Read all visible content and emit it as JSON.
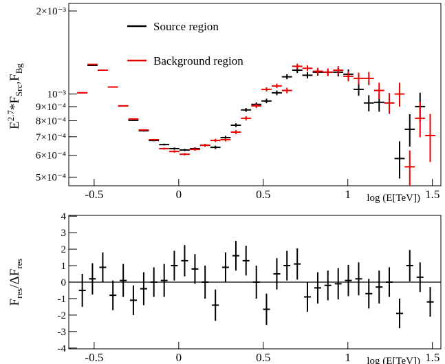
{
  "chart_data": [
    {
      "type": "errorbar",
      "log_y": true,
      "legend": "upper left",
      "xerr": 0.03,
      "ylabel": [
        "E",
        "2.7",
        "*F",
        "Src",
        ",F",
        "Bg"
      ],
      "ylabel_shift": [
        "base",
        "sup",
        "base",
        "sub",
        "base",
        "sub"
      ],
      "xlabel": "log (E[TeV])",
      "xlim": [
        -0.65,
        1.55
      ],
      "xticks": [
        -0.5,
        0,
        0.5,
        1,
        1.5
      ],
      "ylim": [
        0.000465,
        0.00213
      ],
      "yticks": [
        {
          "value": 0.0005,
          "label": "5×10⁻⁴"
        },
        {
          "value": 0.0006,
          "label": "6×10⁻⁴"
        },
        {
          "value": 0.0007,
          "label": "7×10⁻⁴"
        },
        {
          "value": 0.0008,
          "label": "8×10⁻⁴"
        },
        {
          "value": 0.0009,
          "label": "9×10⁻⁴"
        },
        {
          "value": 0.001,
          "label": "10⁻³"
        },
        {
          "value": 0.002,
          "label": "2×10⁻³"
        }
      ],
      "series": [
        {
          "name": "Source region",
          "color": "#000000",
          "x": [
            -0.57,
            -0.51,
            -0.449,
            -0.389,
            -0.328,
            -0.268,
            -0.207,
            -0.147,
            -0.086,
            -0.026,
            0.035,
            0.096,
            0.156,
            0.217,
            0.277,
            0.338,
            0.398,
            0.459,
            0.519,
            0.58,
            0.64,
            0.701,
            0.761,
            0.822,
            0.882,
            0.943,
            1.003,
            1.064,
            1.124,
            1.185,
            1.245,
            1.306,
            1.366,
            1.427
          ],
          "values": [
            0.00101,
            0.00127,
            0.00122,
            0.00106,
            0.000906,
            0.000803,
            0.000736,
            0.000679,
            0.000656,
            0.000634,
            0.000627,
            0.000634,
            0.000652,
            0.000641,
            0.000695,
            0.000771,
            0.000876,
            0.000917,
            0.000944,
            0.00101,
            0.001155,
            0.00122,
            0.00117,
            0.0012,
            0.0012,
            0.0012,
            0.00118,
            0.00104,
            0.000928,
            0.000933,
            0.000928,
            0.000584,
            0.000745,
            0.000901
          ],
          "errors": [
            6e-06,
            6e-06,
            6e-06,
            6e-06,
            5e-06,
            5e-06,
            5e-06,
            5e-06,
            5e-06,
            6e-06,
            6e-06,
            7e-06,
            8e-06,
            9e-06,
            1e-05,
            1.2e-05,
            1.4e-05,
            1.6e-05,
            1.8e-05,
            2e-05,
            2.4e-05,
            2.8e-05,
            3e-05,
            3.4e-05,
            3.8e-05,
            4.2e-05,
            4.8e-05,
            5.5e-05,
            6.2e-05,
            7e-05,
            8e-05,
            9e-05,
            0.0001,
            0.00011
          ]
        },
        {
          "name": "Background region",
          "color": "#ee0000",
          "x": [
            -0.57,
            -0.51,
            -0.449,
            -0.389,
            -0.328,
            -0.268,
            -0.207,
            -0.147,
            -0.086,
            -0.026,
            0.035,
            0.096,
            0.156,
            0.217,
            0.277,
            0.338,
            0.398,
            0.459,
            0.519,
            0.58,
            0.64,
            0.701,
            0.761,
            0.822,
            0.882,
            0.943,
            1.003,
            1.064,
            1.124,
            1.185,
            1.245,
            1.306,
            1.366,
            1.427,
            1.487
          ],
          "values": [
            0.00101,
            0.00128,
            0.00122,
            0.00106,
            0.000906,
            0.000812,
            0.000741,
            0.000683,
            0.000634,
            0.000619,
            0.000605,
            0.00063,
            0.000652,
            0.000679,
            0.000683,
            0.000728,
            0.000817,
            0.000906,
            0.00104,
            0.00107,
            0.00103,
            0.00126,
            0.00124,
            0.00121,
            0.0012,
            0.00122,
            0.00116,
            0.00114,
            0.00114,
            0.00103,
            0.000928,
            0.001,
            0.000545,
            0.000817,
            0.000707
          ],
          "errors": [
            6e-06,
            6e-06,
            6e-06,
            6e-06,
            5e-06,
            5e-06,
            5e-06,
            5e-06,
            5e-06,
            6e-06,
            6e-06,
            7e-06,
            8e-06,
            9e-06,
            1e-05,
            1.2e-05,
            1.4e-05,
            1.6e-05,
            1.8e-05,
            2e-05,
            2.4e-05,
            2.8e-05,
            3e-05,
            3.4e-05,
            3.8e-05,
            4.2e-05,
            4.8e-05,
            5.5e-05,
            6.2e-05,
            7e-05,
            8e-05,
            0.0001,
            8e-05,
            0.00012,
            0.00014
          ]
        }
      ]
    },
    {
      "type": "errorbar",
      "log_y": false,
      "ylabel": [
        "F",
        "res",
        "/ΔF",
        "res"
      ],
      "ylabel_shift": [
        "base",
        "sub",
        "base",
        "sub"
      ],
      "xlabel": "log (E[TeV])",
      "xlim": [
        -0.65,
        1.55
      ],
      "xticks": [
        -0.5,
        0,
        0.5,
        1,
        1.5
      ],
      "ylim": [
        -4.05,
        4.05
      ],
      "yticks": [
        -4,
        -3,
        -2,
        -1,
        0,
        1,
        2,
        3,
        4
      ],
      "hline": 0,
      "series": [
        {
          "color": "#000000",
          "x": [
            -0.57,
            -0.51,
            -0.449,
            -0.389,
            -0.328,
            -0.268,
            -0.207,
            -0.147,
            -0.086,
            -0.026,
            0.035,
            0.096,
            0.156,
            0.217,
            0.277,
            0.338,
            0.398,
            0.459,
            0.519,
            0.58,
            0.64,
            0.701,
            0.761,
            0.822,
            0.882,
            0.943,
            1.003,
            1.064,
            1.124,
            1.185,
            1.245,
            1.306,
            1.366,
            1.427,
            1.487
          ],
          "values": [
            -0.5,
            0.2,
            0.9,
            -0.8,
            0.1,
            -1.1,
            -0.4,
            0.0,
            0.1,
            1.0,
            1.3,
            0.8,
            0.0,
            -1.4,
            0.9,
            1.6,
            1.3,
            0.0,
            -1.65,
            0.5,
            1.0,
            1.1,
            -0.9,
            -0.35,
            -0.2,
            -0.1,
            0.1,
            0.2,
            -0.7,
            -0.3,
            0.0,
            -1.9,
            1.0,
            0.3,
            -1.2
          ],
          "errors": [
            1.0,
            0.95,
            0.9,
            0.9,
            1.0,
            0.9,
            1.0,
            0.9,
            1.0,
            0.9,
            0.95,
            0.9,
            1.0,
            0.95,
            0.9,
            0.9,
            0.9,
            1.0,
            0.95,
            0.95,
            0.9,
            0.95,
            0.9,
            0.95,
            0.9,
            0.95,
            0.95,
            1.0,
            0.9,
            1.0,
            0.9,
            0.9,
            0.95,
            0.9,
            0.9
          ]
        }
      ]
    }
  ]
}
